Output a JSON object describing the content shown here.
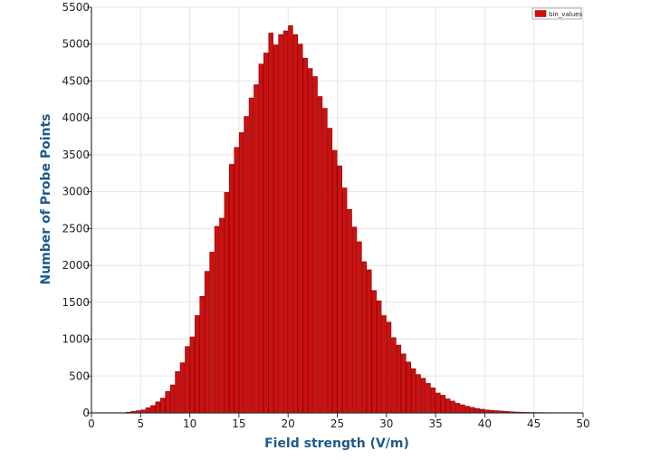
{
  "colors": {
    "bar_fill": "#cc1111",
    "bar_stroke": "#8b0000",
    "axis_title": "#1f5a8a",
    "grid": "#e6e6e6"
  },
  "chart_data": {
    "type": "bar",
    "xlabel": "Field strength (V/m)",
    "ylabel": "Number of Probe Points",
    "xlim": [
      0,
      50
    ],
    "ylim": [
      0,
      5500
    ],
    "grid": true,
    "legend_position": "top-right",
    "x_ticks": [
      "0",
      "5",
      "10",
      "15",
      "20",
      "25",
      "30",
      "35",
      "40",
      "45",
      "50"
    ],
    "y_ticks": [
      "0",
      "500",
      "1000",
      "1500",
      "2000",
      "2500",
      "3000",
      "3500",
      "4000",
      "4500",
      "5000",
      "5500"
    ],
    "bin_width": 0.5,
    "series": [
      {
        "name": "bin_values",
        "x": [
          3.5,
          4.0,
          4.5,
          5.0,
          5.5,
          6.0,
          6.5,
          7.0,
          7.5,
          8.0,
          8.5,
          9.0,
          9.5,
          10.0,
          10.5,
          11.0,
          11.5,
          12.0,
          12.5,
          13.0,
          13.5,
          14.0,
          14.5,
          15.0,
          15.5,
          16.0,
          16.5,
          17.0,
          17.5,
          18.0,
          18.5,
          19.0,
          19.5,
          20.0,
          20.5,
          21.0,
          21.5,
          22.0,
          22.5,
          23.0,
          23.5,
          24.0,
          24.5,
          25.0,
          25.5,
          26.0,
          26.5,
          27.0,
          27.5,
          28.0,
          28.5,
          29.0,
          29.5,
          30.0,
          30.5,
          31.0,
          31.5,
          32.0,
          32.5,
          33.0,
          33.5,
          34.0,
          34.5,
          35.0,
          35.5,
          36.0,
          36.5,
          37.0,
          37.5,
          38.0,
          38.5,
          39.0,
          39.5,
          40.0,
          40.5,
          41.0,
          41.5,
          42.0,
          42.5,
          43.0,
          43.5,
          44.0,
          44.5,
          45.0,
          45.5,
          46.0,
          46.5,
          47.0,
          47.5,
          48.0,
          48.5,
          49.0,
          49.5
        ],
        "values": [
          10,
          20,
          30,
          40,
          70,
          100,
          150,
          200,
          290,
          380,
          560,
          680,
          900,
          1030,
          1320,
          1580,
          1920,
          2180,
          2530,
          2640,
          2990,
          3370,
          3600,
          3800,
          4020,
          4270,
          4450,
          4730,
          4880,
          5150,
          4990,
          5130,
          5180,
          5250,
          5130,
          5000,
          4810,
          4670,
          4560,
          4290,
          4130,
          3860,
          3560,
          3350,
          3050,
          2760,
          2520,
          2320,
          2050,
          1940,
          1660,
          1520,
          1320,
          1230,
          1020,
          920,
          800,
          690,
          600,
          520,
          470,
          400,
          340,
          270,
          240,
          190,
          160,
          130,
          110,
          90,
          75,
          60,
          50,
          40,
          35,
          30,
          25,
          20,
          15,
          12,
          10,
          8,
          6,
          5,
          4,
          3,
          3,
          2,
          2,
          1,
          1,
          1,
          1
        ]
      }
    ]
  }
}
